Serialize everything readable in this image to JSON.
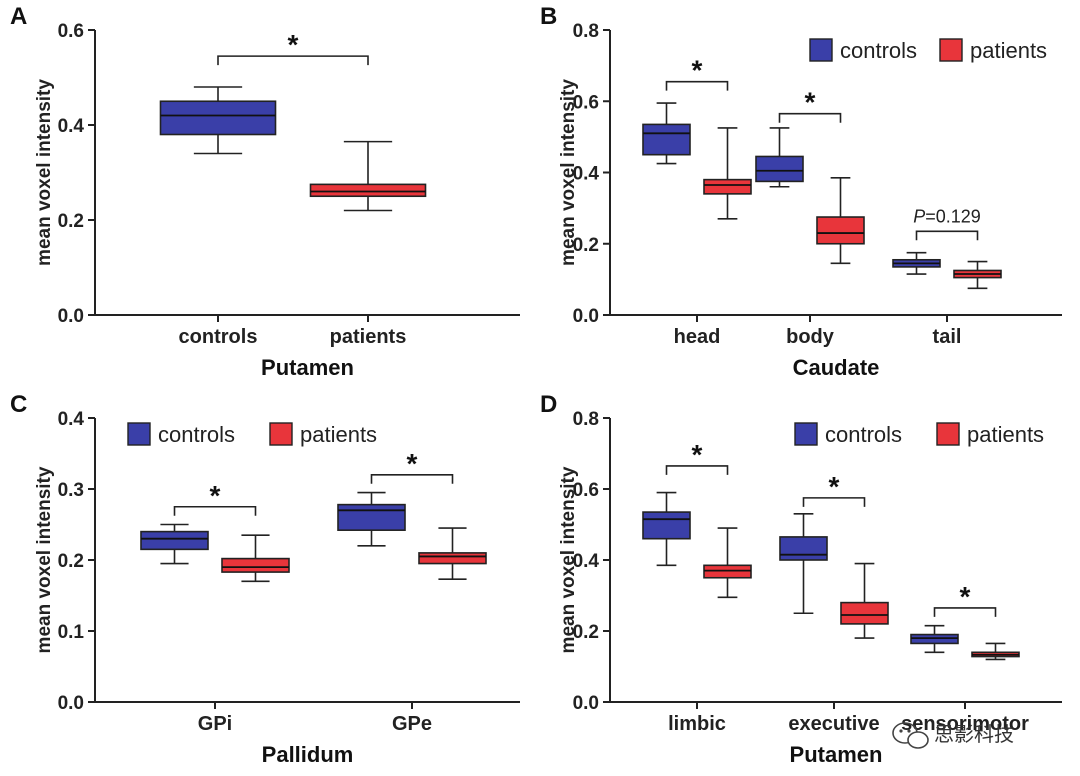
{
  "colors": {
    "controls": "#3a3fa8",
    "patients": "#e8353b",
    "axis": "#222222"
  },
  "watermark": {
    "text": "思影科技",
    "icon": "wechat-icon"
  },
  "chart_data": [
    {
      "panel": "A",
      "type": "boxplot",
      "xlabel": "Putamen",
      "ylabel": "mean voxel intensity",
      "ylim": [
        0,
        0.6
      ],
      "yticks": [
        "0.0",
        "0.2",
        "0.4",
        "0.6"
      ],
      "categories": [
        "controls",
        "patients"
      ],
      "legend": null,
      "boxes": [
        {
          "category": "controls",
          "group": "controls",
          "min": 0.34,
          "q1": 0.38,
          "median": 0.42,
          "q3": 0.45,
          "max": 0.48
        },
        {
          "category": "patients",
          "group": "patients",
          "min": 0.22,
          "q1": 0.25,
          "median": 0.26,
          "q3": 0.275,
          "max": 0.365
        }
      ],
      "annotations": [
        {
          "text": "*",
          "from_box": 0,
          "to_box": 1,
          "level": 0.545
        }
      ]
    },
    {
      "panel": "B",
      "type": "boxplot",
      "xlabel": "Caudate",
      "ylabel": "mean voxel intensity",
      "ylim": [
        0,
        0.8
      ],
      "yticks": [
        "0.0",
        "0.2",
        "0.4",
        "0.6",
        "0.8"
      ],
      "categories": [
        "head",
        "body",
        "tail"
      ],
      "legend": [
        "controls",
        "patients"
      ],
      "boxes": [
        {
          "category": "head",
          "group": "controls",
          "min": 0.425,
          "q1": 0.45,
          "median": 0.51,
          "q3": 0.535,
          "max": 0.595
        },
        {
          "category": "head",
          "group": "patients",
          "min": 0.27,
          "q1": 0.34,
          "median": 0.365,
          "q3": 0.38,
          "max": 0.525
        },
        {
          "category": "body",
          "group": "controls",
          "min": 0.36,
          "q1": 0.375,
          "median": 0.405,
          "q3": 0.445,
          "max": 0.525
        },
        {
          "category": "body",
          "group": "patients",
          "min": 0.145,
          "q1": 0.2,
          "median": 0.23,
          "q3": 0.275,
          "max": 0.385
        },
        {
          "category": "tail",
          "group": "controls",
          "min": 0.115,
          "q1": 0.135,
          "median": 0.145,
          "q3": 0.155,
          "max": 0.175
        },
        {
          "category": "tail",
          "group": "patients",
          "min": 0.075,
          "q1": 0.105,
          "median": 0.115,
          "q3": 0.125,
          "max": 0.15
        }
      ],
      "annotations": [
        {
          "text": "*",
          "from_box": 0,
          "to_box": 1,
          "level": 0.655
        },
        {
          "text": "*",
          "from_box": 2,
          "to_box": 3,
          "level": 0.565
        },
        {
          "text": "P=0.129",
          "italic_prefix": "P",
          "from_box": 4,
          "to_box": 5,
          "level": 0.235
        }
      ]
    },
    {
      "panel": "C",
      "type": "boxplot",
      "xlabel": "Pallidum",
      "ylabel": "mean voxel intensity",
      "ylim": [
        0,
        0.4
      ],
      "yticks": [
        "0.0",
        "0.1",
        "0.2",
        "0.3",
        "0.4"
      ],
      "categories": [
        "GPi",
        "GPe"
      ],
      "legend": [
        "controls",
        "patients"
      ],
      "boxes": [
        {
          "category": "GPi",
          "group": "controls",
          "min": 0.195,
          "q1": 0.215,
          "median": 0.23,
          "q3": 0.24,
          "max": 0.25
        },
        {
          "category": "GPi",
          "group": "patients",
          "min": 0.17,
          "q1": 0.183,
          "median": 0.19,
          "q3": 0.202,
          "max": 0.235
        },
        {
          "category": "GPe",
          "group": "controls",
          "min": 0.22,
          "q1": 0.242,
          "median": 0.27,
          "q3": 0.278,
          "max": 0.295
        },
        {
          "category": "GPe",
          "group": "patients",
          "min": 0.173,
          "q1": 0.195,
          "median": 0.205,
          "q3": 0.21,
          "max": 0.245
        }
      ],
      "annotations": [
        {
          "text": "*",
          "from_box": 0,
          "to_box": 1,
          "level": 0.275
        },
        {
          "text": "*",
          "from_box": 2,
          "to_box": 3,
          "level": 0.32
        }
      ]
    },
    {
      "panel": "D",
      "type": "boxplot",
      "xlabel": "Putamen",
      "ylabel": "mean voxel intensity",
      "ylim": [
        0,
        0.8
      ],
      "yticks": [
        "0.0",
        "0.2",
        "0.4",
        "0.6",
        "0.8"
      ],
      "categories": [
        "limbic",
        "executive",
        "sensorimotor"
      ],
      "legend": [
        "controls",
        "patients"
      ],
      "boxes": [
        {
          "category": "limbic",
          "group": "controls",
          "min": 0.385,
          "q1": 0.46,
          "median": 0.515,
          "q3": 0.535,
          "max": 0.59
        },
        {
          "category": "limbic",
          "group": "patients",
          "min": 0.295,
          "q1": 0.35,
          "median": 0.37,
          "q3": 0.385,
          "max": 0.49
        },
        {
          "category": "executive",
          "group": "controls",
          "min": 0.25,
          "q1": 0.4,
          "median": 0.415,
          "q3": 0.465,
          "max": 0.53
        },
        {
          "category": "executive",
          "group": "patients",
          "min": 0.18,
          "q1": 0.22,
          "median": 0.245,
          "q3": 0.28,
          "max": 0.39
        },
        {
          "category": "sensorimotor",
          "group": "controls",
          "min": 0.14,
          "q1": 0.165,
          "median": 0.18,
          "q3": 0.19,
          "max": 0.215
        },
        {
          "category": "sensorimotor",
          "group": "patients",
          "min": 0.12,
          "q1": 0.128,
          "median": 0.133,
          "q3": 0.14,
          "max": 0.165
        }
      ],
      "annotations": [
        {
          "text": "*",
          "from_box": 0,
          "to_box": 1,
          "level": 0.665
        },
        {
          "text": "*",
          "from_box": 2,
          "to_box": 3,
          "level": 0.575
        },
        {
          "text": "*",
          "from_box": 4,
          "to_box": 5,
          "level": 0.265
        }
      ]
    }
  ]
}
